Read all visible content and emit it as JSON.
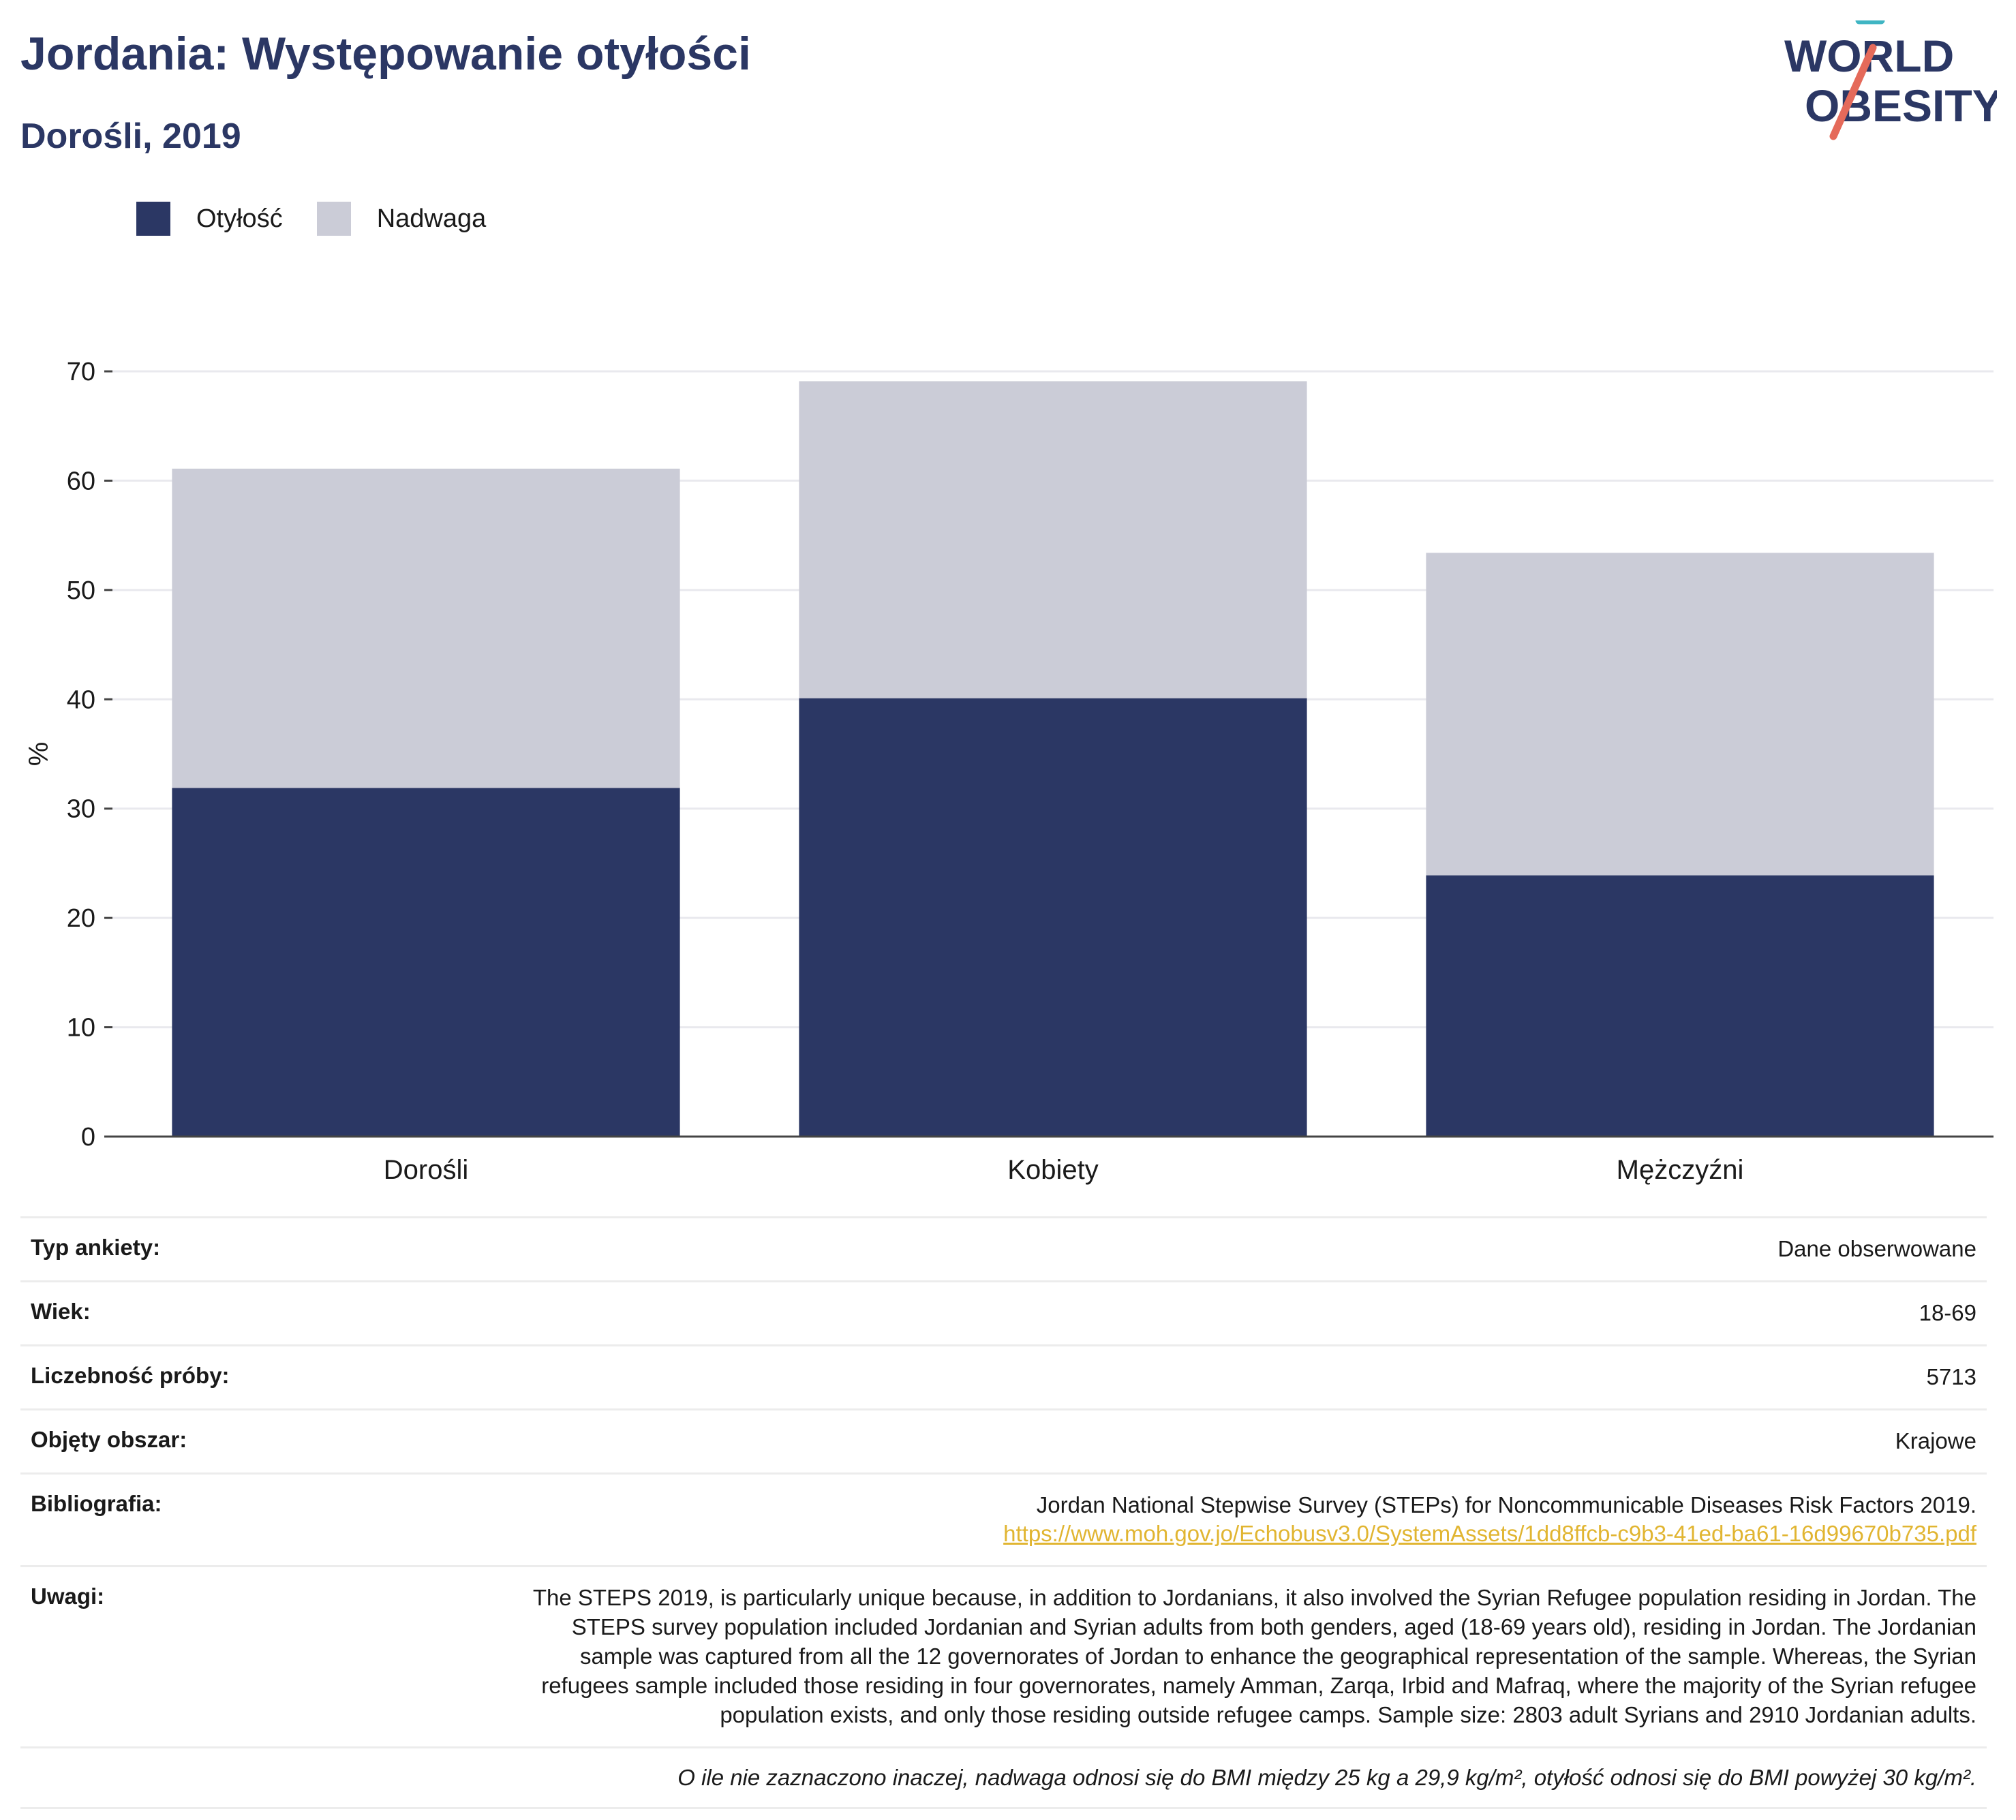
{
  "header": {
    "title": "Jordania: Występowanie otyłości",
    "subtitle": "Dorośli, 2019",
    "logo_line1": "WORLD",
    "logo_line2": "OBESITY"
  },
  "colors": {
    "obesity": "#2b3764",
    "overweight": "#cbccd7",
    "title": "#2b3764",
    "link": "#e1b531"
  },
  "chart_data": {
    "type": "bar",
    "stacked": true,
    "categories": [
      "Dorośli",
      "Kobiety",
      "Mężczyźni"
    ],
    "series": [
      {
        "name": "Otyłość",
        "values": [
          31.9,
          40.1,
          23.9
        ]
      },
      {
        "name": "Nadwaga",
        "values": [
          29.2,
          29.0,
          29.5
        ]
      }
    ],
    "title": "",
    "xlabel": "",
    "ylabel": "%",
    "ylim": [
      0,
      70
    ],
    "yticks": [
      0,
      10,
      20,
      30,
      40,
      50,
      60,
      70
    ],
    "grid": true,
    "legend": "top-left"
  },
  "info": {
    "survey_type_label": "Typ ankiety:",
    "survey_type_value": "Dane obserwowane",
    "age_label": "Wiek:",
    "age_value": "18-69",
    "sample_label": "Liczebność próby:",
    "sample_value": "5713",
    "area_label": "Objęty obszar:",
    "area_value": "Krajowe",
    "bib_label": "Bibliografia:",
    "bib_value": "Jordan National Stepwise Survey (STEPs) for Noncommunicable Diseases Risk Factors 2019.",
    "bib_link": "https://www.moh.gov.jo/Echobusv3.0/SystemAssets/1dd8ffcb-c9b3-41ed-ba61-16d99670b735.pdf",
    "notes_label": "Uwagi:",
    "notes_value": "The STEPS 2019, is particularly unique because, in addition to Jordanians, it also involved the Syrian Refugee population residing in Jordan. The STEPS survey population included Jordanian and Syrian adults from both genders, aged (18-69 years old), residing in Jordan. The Jordanian sample was captured from all the 12 governorates of Jordan to enhance the geographical representation of the sample. Whereas, the Syrian refugees sample included those residing in four governorates, namely Amman, Zarqa, Irbid and Mafraq, where the majority of the Syrian refugee population exists, and only those residing outside refugee camps. Sample size: 2803 adult Syrians and 2910 Jordanian adults.",
    "footnote": "O ile nie zaznaczono inaczej, nadwaga odnosi się do BMI między 25 kg a 29,9 kg/m², otyłość odnosi się do BMI powyżej 30 kg/m²."
  }
}
